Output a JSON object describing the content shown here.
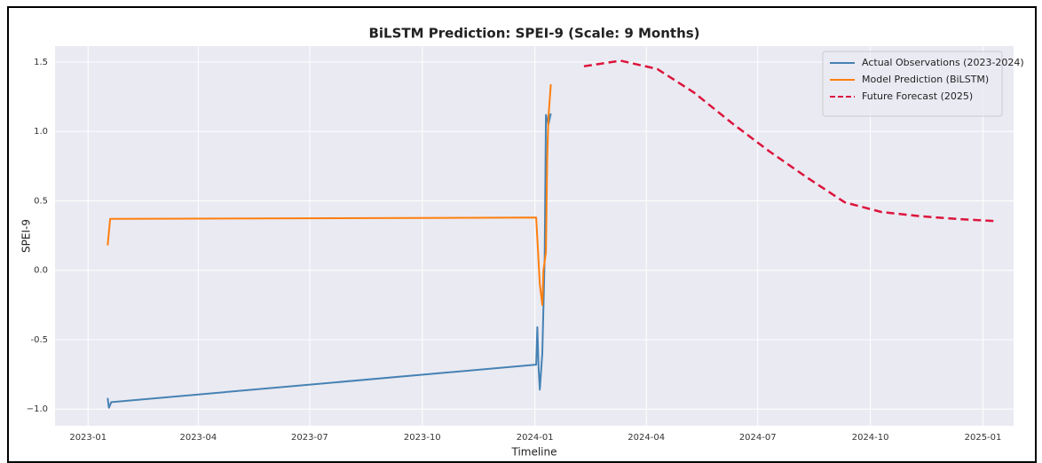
{
  "chart_data": {
    "type": "line",
    "title": "BiLSTM Prediction: SPEI-9 (Scale: 9 Months)",
    "xlabel": "Timeline",
    "ylabel": "SPEI-9",
    "xlim": [
      "2022-12-05",
      "2025-01-26"
    ],
    "ylim": [
      -1.12,
      1.615
    ],
    "xticks": [
      {
        "value": "2023-01-01",
        "label": "2023-01"
      },
      {
        "value": "2023-04-01",
        "label": "2023-04"
      },
      {
        "value": "2023-07-01",
        "label": "2023-07"
      },
      {
        "value": "2023-10-01",
        "label": "2023-10"
      },
      {
        "value": "2024-01-01",
        "label": "2024-01"
      },
      {
        "value": "2024-04-01",
        "label": "2024-04"
      },
      {
        "value": "2024-07-01",
        "label": "2024-07"
      },
      {
        "value": "2024-10-01",
        "label": "2024-10"
      },
      {
        "value": "2025-01-01",
        "label": "2025-01"
      }
    ],
    "yticks": [
      {
        "value": -1,
        "label": "−1.0"
      },
      -0.5,
      {
        "value": 0,
        "label": "0.0"
      },
      0.5,
      {
        "value": 1,
        "label": "1.0"
      },
      1.5
    ],
    "grid": true,
    "legend": "upper right",
    "series": [
      {
        "name": "Actual Observations (2023-2024)",
        "color": "#4682b4",
        "dash": false,
        "x": [
          "2023-01-17",
          "2023-01-18",
          "2023-01-20",
          "2024-01-02",
          "2024-01-03",
          "2024-01-04",
          "2024-01-05",
          "2024-01-07",
          "2024-01-09",
          "2024-01-10",
          "2024-01-12",
          "2024-01-14"
        ],
        "values": [
          -0.92,
          -0.99,
          -0.95,
          -0.68,
          -0.41,
          -0.7,
          -0.86,
          -0.6,
          0.1,
          1.12,
          1.05,
          1.13
        ]
      },
      {
        "name": "Model Prediction (BiLSTM)",
        "color": "#ff7f0e",
        "dash": false,
        "x": [
          "2023-01-17",
          "2023-01-19",
          "2024-01-02",
          "2024-01-05",
          "2024-01-07",
          "2024-01-08",
          "2024-01-10",
          "2024-01-11",
          "2024-01-12",
          "2024-01-14"
        ],
        "values": [
          0.18,
          0.37,
          0.38,
          -0.1,
          -0.25,
          0.0,
          0.13,
          0.8,
          1.1,
          1.34
        ]
      },
      {
        "name": "Future Forecast (2025)",
        "color": "#dc143c",
        "dash": true,
        "x": [
          "2024-02-10",
          "2024-03-11",
          "2024-04-10",
          "2024-05-10",
          "2024-06-10",
          "2024-07-10",
          "2024-08-10",
          "2024-09-10",
          "2024-10-10",
          "2024-11-10",
          "2024-12-10",
          "2025-01-10"
        ],
        "values": [
          1.47,
          1.51,
          1.45,
          1.28,
          1.06,
          0.86,
          0.67,
          0.49,
          0.42,
          0.39,
          0.37,
          0.355
        ]
      }
    ]
  }
}
